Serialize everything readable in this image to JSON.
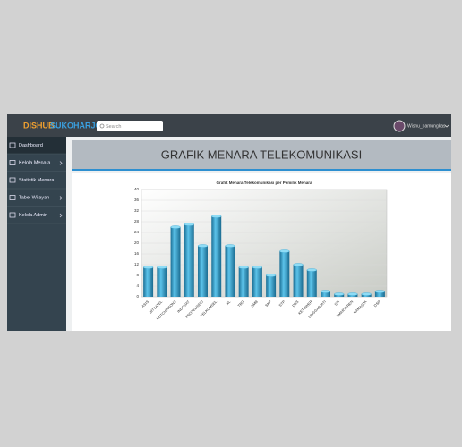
{
  "header": {
    "brand_a": "DISHUB",
    "brand_b": "SUKOHARJO",
    "search_placeholder": "Search",
    "user": "Wisnu_pamungkas"
  },
  "sidebar": {
    "items": [
      "Dashboard",
      "Kelola Menara",
      "Statistik Menara",
      "Tabel Wilayah",
      "Kelola Admin"
    ]
  },
  "page_title": "GRAFIK MENARA TELEKOMUNIKASI",
  "chart_data": {
    "type": "bar",
    "title": "Grafik Menara Telekomunikasi per Pemilik Menara",
    "categories": [
      "ASIS",
      "BITSATEL",
      "HUTCHINSON3",
      "INDOSAT",
      "PROTELINDO",
      "TELKOMSEL",
      "XL",
      "TBG",
      "SMB",
      "SKP",
      "STP",
      "DBS",
      "KETOWER",
      "LINGGARJATI",
      "STI",
      "SMARTFREN",
      "NAMASTA",
      "DSP"
    ],
    "values": [
      11,
      11,
      26,
      27,
      19,
      30,
      19,
      11,
      11,
      8,
      17,
      12,
      10,
      2,
      1,
      1,
      1,
      2
    ],
    "color": "#2a9bc9",
    "ylim": [
      0,
      40
    ],
    "yticks": [
      0,
      4,
      8,
      12,
      16,
      20,
      24,
      28,
      32,
      36,
      40
    ],
    "grid": true
  }
}
